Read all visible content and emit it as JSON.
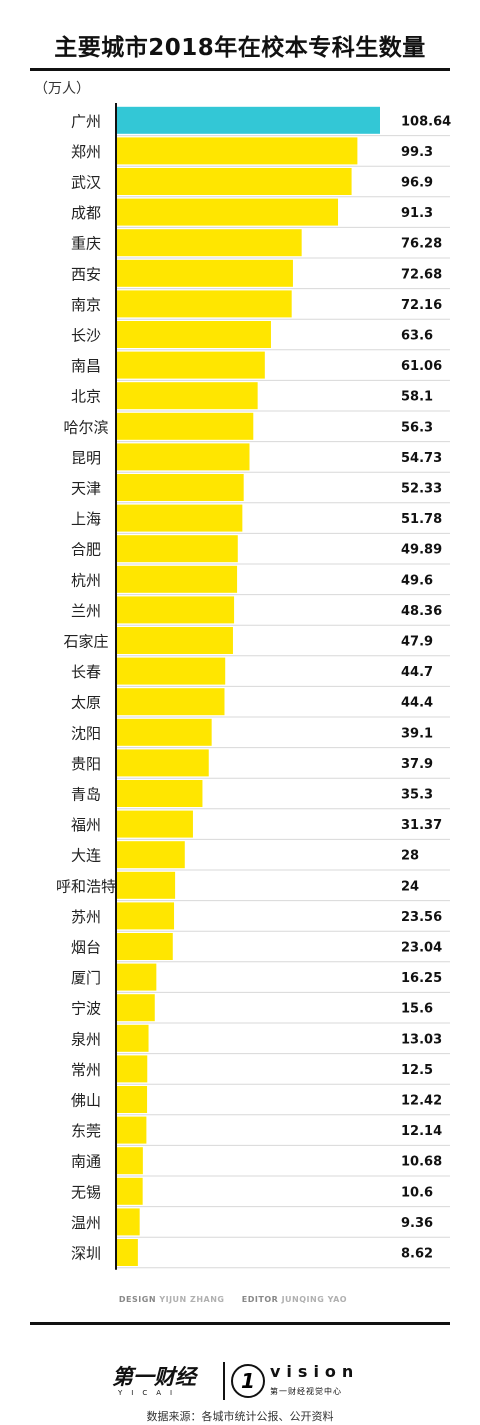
{
  "chart_data": {
    "type": "bar",
    "orientation": "horizontal",
    "title": "主要城市2018年在校本专科生数量",
    "unit_label": "（万人）",
    "categories": [
      "广州",
      "郑州",
      "武汉",
      "成都",
      "重庆",
      "西安",
      "南京",
      "长沙",
      "南昌",
      "北京",
      "哈尔滨",
      "昆明",
      "天津",
      "上海",
      "合肥",
      "杭州",
      "兰州",
      "石家庄",
      "长春",
      "太原",
      "沈阳",
      "贵阳",
      "青岛",
      "福州",
      "大连",
      "呼和浩特",
      "苏州",
      "烟台",
      "厦门",
      "宁波",
      "泉州",
      "常州",
      "佛山",
      "东莞",
      "南通",
      "无锡",
      "温州",
      "深圳"
    ],
    "values": [
      108.64,
      99.3,
      96.9,
      91.3,
      76.28,
      72.68,
      72.16,
      63.6,
      61.06,
      58.1,
      56.3,
      54.73,
      52.33,
      51.78,
      49.89,
      49.6,
      48.36,
      47.9,
      44.7,
      44.4,
      39.1,
      37.9,
      35.3,
      31.37,
      28,
      24,
      23.56,
      23.04,
      16.25,
      15.6,
      13.03,
      12.5,
      12.42,
      12.14,
      10.68,
      10.6,
      9.36,
      8.62
    ],
    "value_labels": [
      "108.64",
      "99.3",
      "96.9",
      "91.3",
      "76.28",
      "72.68",
      "72.16",
      "63.6",
      "61.06",
      "58.1",
      "56.3",
      "54.73",
      "52.33",
      "51.78",
      "49.89",
      "49.6",
      "48.36",
      "47.9",
      "44.7",
      "44.4",
      "39.1",
      "37.9",
      "35.3",
      "31.37",
      "28",
      "24",
      "23.56",
      "23.04",
      "16.25",
      "15.6",
      "13.03",
      "12.5",
      "12.42",
      "12.14",
      "10.68",
      "10.6",
      "9.36",
      "8.62"
    ],
    "highlight_index": 0,
    "xlim": [
      0,
      108.64
    ],
    "colors": {
      "bar": "#FFE600",
      "highlight": "#33C7D6",
      "row_line": "#d8d8d8",
      "axis": "#111111"
    }
  },
  "credits": {
    "design_label": "DESIGN",
    "design_name": "YIJUN ZHANG",
    "editor_label": "EDITOR",
    "editor_name": "JUNQING YAO"
  },
  "logos": {
    "cn_name": "第一财经",
    "cn_sub": "YICAI",
    "one_mark": "1",
    "vision": "vision",
    "vision_sub": "第一财经视觉中心"
  },
  "source": "数据来源：各城市统计公报、公开资料"
}
